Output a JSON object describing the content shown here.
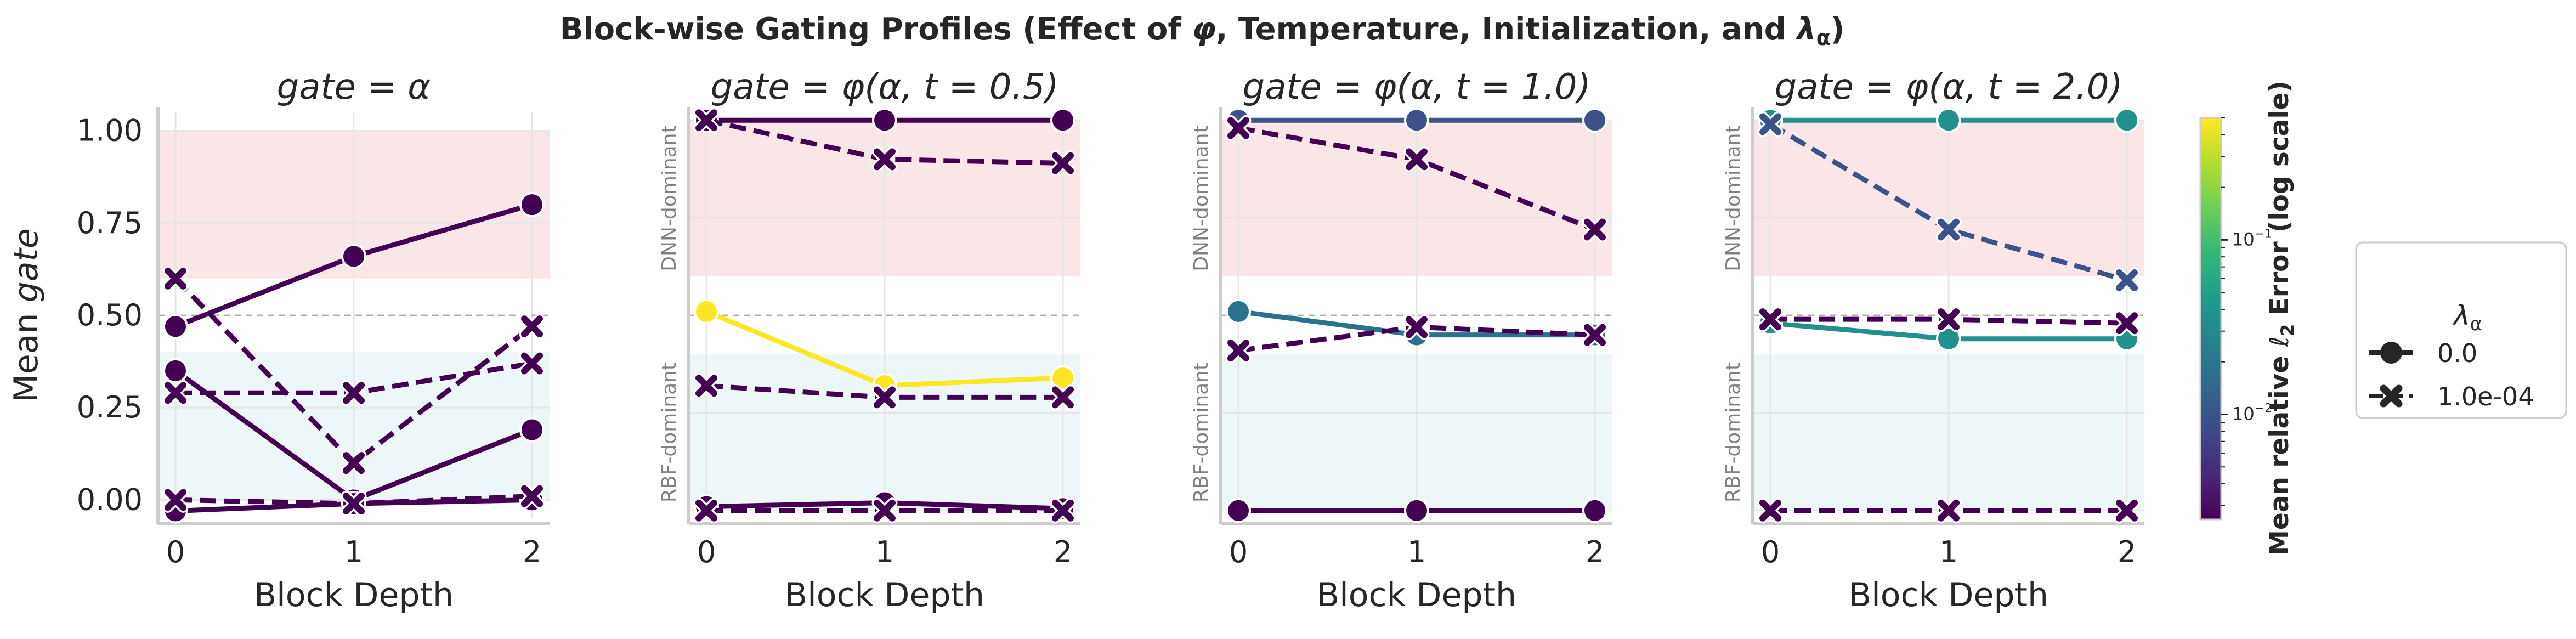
{
  "figure": {
    "suptitle_prefix": "Block-wise Gating Profiles (Effect of ",
    "suptitle_phi": "φ",
    "suptitle_middle": ", Temperature, Initialization, and ",
    "suptitle_lambda": "λ",
    "suptitle_lambda_sub": "α",
    "suptitle_suffix": ")"
  },
  "colors": {
    "dnn_band": "#f8dcdf",
    "rbf_band": "#dcedf3",
    "threshold": "#b0b0b0",
    "grid": "#e6e6e6",
    "axis": "#cccccc",
    "text": "#262626",
    "band_label": "#808080"
  },
  "chart_data": [
    {
      "type": "line",
      "title": "gate = α",
      "xlabel": "Block Depth",
      "ylabel": "Mean gate",
      "categories": [
        0,
        1,
        2
      ],
      "ylim": [
        -0.05,
        1.05
      ],
      "yticks": [
        "0.00",
        "0.25",
        "0.50",
        "0.75",
        "1.00"
      ],
      "ytick_values": [
        0,
        0.25,
        0.5,
        0.75,
        1.0
      ],
      "band_labels": [],
      "series": [
        {
          "name": "λα=0.0 (a)",
          "lambda": "0.0",
          "color": "#440154",
          "values": [
            0.47,
            0.66,
            0.8
          ]
        },
        {
          "name": "λα=0.0 (b)",
          "lambda": "0.0",
          "color": "#440154",
          "values": [
            0.35,
            0.0,
            0.19
          ]
        },
        {
          "name": "λα=0.0 (c)",
          "lambda": "0.0",
          "color": "#440154",
          "values": [
            -0.03,
            -0.01,
            0.0
          ]
        },
        {
          "name": "λα=1.0e-04 (a)",
          "lambda": "1.0e-04",
          "color": "#440154",
          "values": [
            0.6,
            0.1,
            0.47
          ]
        },
        {
          "name": "λα=1.0e-04 (b)",
          "lambda": "1.0e-04",
          "color": "#440154",
          "values": [
            0.29,
            0.29,
            0.37
          ]
        },
        {
          "name": "λα=1.0e-04 (c)",
          "lambda": "1.0e-04",
          "color": "#440154",
          "values": [
            0.0,
            -0.01,
            0.01
          ]
        }
      ]
    },
    {
      "type": "line",
      "title": "gate = φ(α, t = 0.5)",
      "xlabel": "Block Depth",
      "ylabel": "",
      "categories": [
        0,
        1,
        2
      ],
      "ylim": [
        -0.02,
        1.02
      ],
      "yticks": [],
      "ytick_values": [],
      "band_labels": [
        "DNN-dominant",
        "RBF-dominant"
      ],
      "series": [
        {
          "name": "λα=0.0 (a)",
          "lambda": "0.0",
          "color": "#440154",
          "values": [
            1.0,
            1.0,
            1.0
          ]
        },
        {
          "name": "λα=0.0 (b)",
          "lambda": "0.0",
          "color": "#fde725",
          "values": [
            0.51,
            0.32,
            0.34
          ]
        },
        {
          "name": "λα=0.0 (c)",
          "lambda": "0.0",
          "color": "#440154",
          "values": [
            0.01,
            0.02,
            0.005
          ]
        },
        {
          "name": "λα=1.0e-04 (a)",
          "lambda": "1.0e-04",
          "color": "#440154",
          "values": [
            1.0,
            0.9,
            0.89
          ]
        },
        {
          "name": "λα=1.0e-04 (b)",
          "lambda": "1.0e-04",
          "color": "#440154",
          "values": [
            0.32,
            0.29,
            0.29
          ]
        },
        {
          "name": "λα=1.0e-04 (c)",
          "lambda": "1.0e-04",
          "color": "#440154",
          "values": [
            0.0,
            0.0,
            0.0
          ]
        }
      ]
    },
    {
      "type": "line",
      "title": "gate = φ(α, t = 1.0)",
      "xlabel": "Block Depth",
      "ylabel": "",
      "categories": [
        0,
        1,
        2
      ],
      "ylim": [
        -0.02,
        1.02
      ],
      "yticks": [],
      "ytick_values": [],
      "band_labels": [
        "DNN-dominant",
        "RBF-dominant"
      ],
      "series": [
        {
          "name": "λα=0.0 (a)",
          "lambda": "0.0",
          "color": "#3b528b",
          "values": [
            1.0,
            1.0,
            1.0
          ]
        },
        {
          "name": "λα=0.0 (b)",
          "lambda": "0.0",
          "color": "#2c728e",
          "values": [
            0.51,
            0.45,
            0.45
          ]
        },
        {
          "name": "λα=0.0 (c)",
          "lambda": "0.0",
          "color": "#440154",
          "values": [
            0.0,
            0.0,
            0.0
          ]
        },
        {
          "name": "λα=1.0e-04 (a)",
          "lambda": "1.0e-04",
          "color": "#440154",
          "values": [
            0.98,
            0.9,
            0.72
          ]
        },
        {
          "name": "λα=1.0e-04 (b)",
          "lambda": "1.0e-04",
          "color": "#440154",
          "values": [
            0.41,
            0.47,
            0.45
          ]
        }
      ]
    },
    {
      "type": "line",
      "title": "gate = φ(α, t = 2.0)",
      "xlabel": "Block Depth",
      "ylabel": "",
      "categories": [
        0,
        1,
        2
      ],
      "ylim": [
        -0.02,
        1.02
      ],
      "yticks": [],
      "ytick_values": [],
      "band_labels": [
        "DNN-dominant",
        "RBF-dominant"
      ],
      "series": [
        {
          "name": "λα=0.0 (a)",
          "lambda": "0.0",
          "color": "#21918c",
          "values": [
            1.0,
            1.0,
            1.0
          ]
        },
        {
          "name": "λα=0.0 (b)",
          "lambda": "0.0",
          "color": "#21918c",
          "values": [
            0.48,
            0.44,
            0.44
          ]
        },
        {
          "name": "λα=1.0e-04 (a)",
          "lambda": "1.0e-04",
          "color": "#3b528b",
          "values": [
            0.99,
            0.72,
            0.59
          ]
        },
        {
          "name": "λα=1.0e-04 (b)",
          "lambda": "1.0e-04",
          "color": "#440154",
          "values": [
            0.49,
            0.49,
            0.48
          ]
        },
        {
          "name": "λα=1.0e-04 (c)",
          "lambda": "1.0e-04",
          "color": "#440154",
          "values": [
            0.0,
            0.0,
            0.0
          ]
        }
      ]
    }
  ],
  "colorbar": {
    "label_prefix": "Mean relative ",
    "label_ell": "ℓ",
    "label_sub": "2",
    "label_suffix": " Error (log scale)",
    "scale": "log",
    "range": [
      0.0025,
      0.5
    ],
    "ticks": [
      {
        "value": 0.1,
        "base": "10",
        "exp": "−1"
      },
      {
        "value": 0.01,
        "base": "10",
        "exp": "−2"
      }
    ],
    "stops": [
      "#440154",
      "#482878",
      "#3e4a89",
      "#31688e",
      "#26828e",
      "#1f9e89",
      "#35b779",
      "#6ece58",
      "#b5de2b",
      "#fde725"
    ]
  },
  "legend": {
    "title_symbol": "λ",
    "title_sub": "α",
    "entries": [
      {
        "label": "0.0",
        "style": "solid",
        "marker": "circle"
      },
      {
        "label": "1.0e-04",
        "style": "dashed",
        "marker": "x"
      }
    ]
  }
}
